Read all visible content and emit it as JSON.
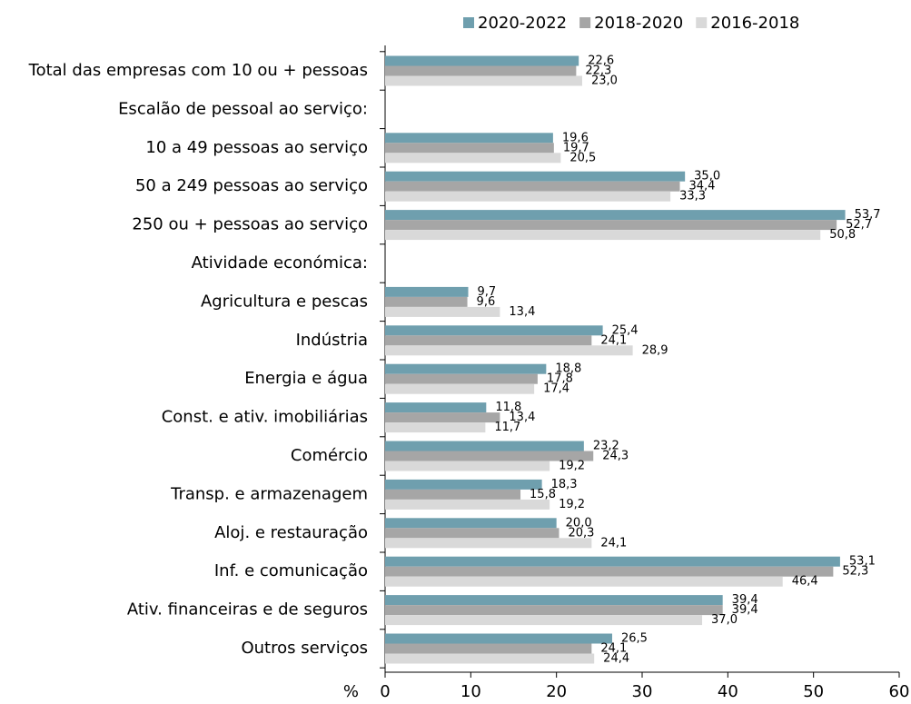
{
  "chart_data": {
    "type": "barh",
    "categories": [
      "Total das empresas com 10 ou + pessoas",
      "Escalão de pessoal ao serviço:",
      "10 a 49 pessoas ao serviço",
      "50 a 249 pessoas ao serviço",
      "250 ou + pessoas ao serviço",
      "Atividade económica:",
      "Agricultura e pescas",
      "Indústria",
      "Energia e água",
      "Const. e ativ. imobiliárias",
      "Comércio",
      "Transp. e armazenagem",
      "Aloj. e restauração",
      "Inf. e comunicação",
      "Ativ. financeiras e de seguros",
      "Outros serviços"
    ],
    "series": [
      {
        "name": "2020-2022",
        "color": "#6f9fae",
        "values": [
          22.6,
          null,
          19.6,
          35.0,
          53.7,
          null,
          9.7,
          25.4,
          18.8,
          11.8,
          23.2,
          18.3,
          20.0,
          53.1,
          39.4,
          26.5
        ],
        "value_labels": [
          "22,6",
          null,
          "19,6",
          "35,0",
          "53,7",
          null,
          "9,7",
          "25,4",
          "18,8",
          "11,8",
          "23,2",
          "18,3",
          "20,0",
          "53,1",
          "39,4",
          "26,5"
        ]
      },
      {
        "name": "2018-2020",
        "color": "#a6a6a6",
        "values": [
          22.3,
          null,
          19.7,
          34.4,
          52.7,
          null,
          9.6,
          24.1,
          17.8,
          13.4,
          24.3,
          15.8,
          20.3,
          52.3,
          39.4,
          24.1
        ],
        "value_labels": [
          "22,3",
          null,
          "19,7",
          "34,4",
          "52,7",
          null,
          "9,6",
          "24,1",
          "17,8",
          "13,4",
          "24,3",
          "15,8",
          "20,3",
          "52,3",
          "39,4",
          "24,1"
        ]
      },
      {
        "name": "2016-2018",
        "color": "#d9d9d9",
        "values": [
          23.0,
          null,
          20.5,
          33.3,
          50.8,
          null,
          13.4,
          28.9,
          17.4,
          11.7,
          19.2,
          19.2,
          24.1,
          46.4,
          37.0,
          24.4
        ],
        "value_labels": [
          "23,0",
          null,
          "20,5",
          "33,3",
          "50,8",
          null,
          "13,4",
          "28,9",
          "17,4",
          "11,7",
          "19,2",
          "19,2",
          "24,1",
          "46,4",
          "37,0",
          "24,4"
        ]
      }
    ],
    "xlabel": "%",
    "xlim": [
      0,
      60
    ],
    "xticks": [
      0,
      10,
      20,
      30,
      40,
      50,
      60
    ],
    "legend": "top"
  }
}
